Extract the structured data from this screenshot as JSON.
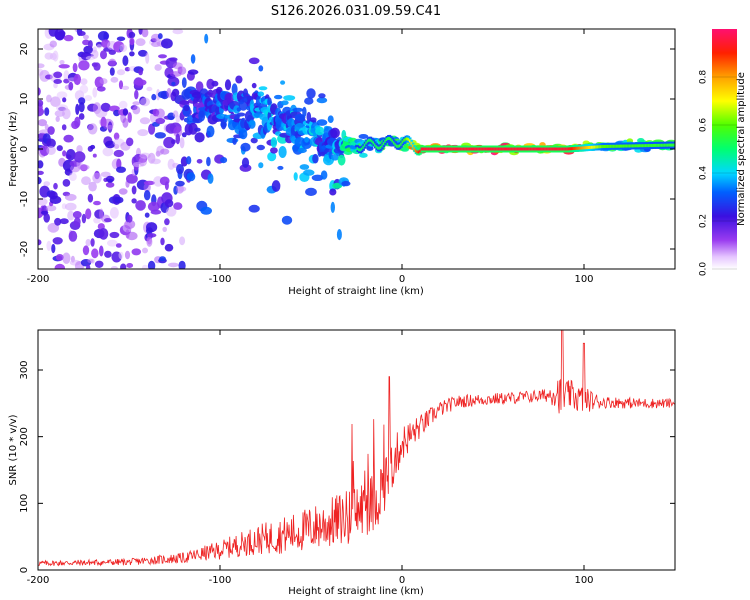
{
  "title": "S126.2026.031.09.59.C41",
  "chart_data": [
    {
      "type": "heatmap",
      "title": "S126.2026.031.09.59.C41",
      "xlabel": "Height of straight line (km)",
      "ylabel": "Frequency (Hz)",
      "xlim": [
        -200,
        150
      ],
      "ylim": [
        -24,
        24
      ],
      "xticks": [
        -200,
        -100,
        0,
        100
      ],
      "yticks": [
        -20,
        -10,
        0,
        10,
        20
      ],
      "colorbar": {
        "label": "Normalized spectral amplitude",
        "range": [
          0,
          1
        ],
        "ticks": [
          0.0,
          0.2,
          0.4,
          0.6,
          0.8
        ]
      },
      "description_points": [
        {
          "x": -200,
          "f_center": 0,
          "f_spread": 24,
          "amp": 0.22
        },
        {
          "x": -150,
          "f_center": 2,
          "f_spread": 22,
          "amp": 0.22
        },
        {
          "x": -120,
          "f_center": 9,
          "f_spread": 6,
          "amp": 0.28
        },
        {
          "x": -90,
          "f_center": 8,
          "f_spread": 5,
          "amp": 0.35
        },
        {
          "x": -60,
          "f_center": 5,
          "f_spread": 4,
          "amp": 0.4
        },
        {
          "x": -40,
          "f_center": 1,
          "f_spread": 4,
          "amp": 0.4
        },
        {
          "x": -30,
          "f_center": 0.5,
          "f_spread": 1.5,
          "amp": 0.5
        },
        {
          "x": 0,
          "f_center": 1.5,
          "f_spread": 1.2,
          "amp": 0.55
        },
        {
          "x": 10,
          "f_center": 0,
          "f_spread": 0.6,
          "amp": 0.95
        },
        {
          "x": 90,
          "f_center": 0,
          "f_spread": 0.6,
          "amp": 0.95
        },
        {
          "x": 110,
          "f_center": 0.5,
          "f_spread": 0.8,
          "amp": 0.6
        },
        {
          "x": 150,
          "f_center": 0.8,
          "f_spread": 0.8,
          "amp": 0.55
        }
      ]
    },
    {
      "type": "line",
      "xlabel": "Height of straight line (km)",
      "ylabel": "SNR (10 * v/v)",
      "xlim": [
        -200,
        150
      ],
      "ylim": [
        0,
        360
      ],
      "xticks": [
        -200,
        -100,
        0,
        100
      ],
      "yticks": [
        0,
        100,
        200,
        300
      ],
      "color": "#ee2222",
      "series": [
        {
          "name": "SNR",
          "x": [
            -200,
            -150,
            -120,
            -100,
            -80,
            -60,
            -40,
            -30,
            -20,
            -15,
            -10,
            -5,
            0,
            10,
            20,
            30,
            40,
            60,
            80,
            85,
            88,
            90,
            95,
            100,
            110,
            130,
            150
          ],
          "y": [
            10,
            12,
            18,
            30,
            45,
            55,
            70,
            80,
            95,
            100,
            130,
            160,
            190,
            215,
            240,
            252,
            255,
            258,
            262,
            270,
            255,
            265,
            260,
            255,
            252,
            250,
            250
          ],
          "noise": [
            4,
            5,
            8,
            14,
            22,
            30,
            38,
            42,
            45,
            48,
            45,
            38,
            28,
            18,
            12,
            10,
            9,
            9,
            10,
            28,
            30,
            20,
            24,
            20,
            9,
            8,
            7
          ]
        }
      ]
    }
  ]
}
